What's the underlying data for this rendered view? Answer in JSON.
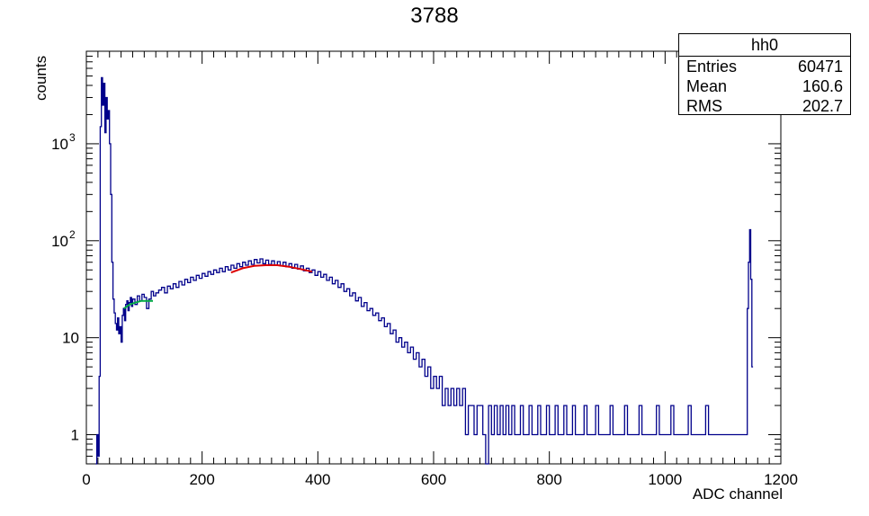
{
  "chart_data": {
    "type": "histogram",
    "title": "3788",
    "xlabel": "ADC channel",
    "ylabel": "counts",
    "xlim": [
      0,
      1200
    ],
    "ylim": [
      0.5,
      9000
    ],
    "yscale": "log",
    "x_ticks": [
      "0",
      "200",
      "400",
      "600",
      "800",
      "1000",
      "1200"
    ],
    "y_ticks": [
      {
        "value": 1,
        "label": "1"
      },
      {
        "value": 10,
        "label": "10"
      },
      {
        "value": 100,
        "label": "10",
        "sup": "2"
      },
      {
        "value": 1000,
        "label": "10",
        "sup": "3"
      }
    ],
    "stats": {
      "name": "hh0",
      "rows": [
        {
          "label": "Entries",
          "value": "60471"
        },
        {
          "label": "Mean",
          "value": "160.6"
        },
        {
          "label": "RMS",
          "value": "202.7"
        }
      ]
    },
    "series": [
      {
        "color": "#00008b",
        "points": [
          [
            16,
            0.5
          ],
          [
            18,
            1
          ],
          [
            20,
            0.6
          ],
          [
            22,
            4
          ],
          [
            24,
            1500
          ],
          [
            26,
            4800
          ],
          [
            28,
            2500
          ],
          [
            30,
            4200
          ],
          [
            32,
            1300
          ],
          [
            34,
            3000
          ],
          [
            36,
            1800
          ],
          [
            38,
            2200
          ],
          [
            40,
            1000
          ],
          [
            42,
            300
          ],
          [
            44,
            60
          ],
          [
            46,
            25
          ],
          [
            48,
            18
          ],
          [
            50,
            14
          ],
          [
            52,
            12
          ],
          [
            54,
            16
          ],
          [
            56,
            11
          ],
          [
            58,
            13
          ],
          [
            60,
            9
          ],
          [
            62,
            17
          ],
          [
            64,
            20
          ],
          [
            66,
            15
          ],
          [
            68,
            22
          ],
          [
            70,
            24
          ],
          [
            72,
            19
          ],
          [
            74,
            23
          ],
          [
            76,
            26
          ],
          [
            78,
            21
          ],
          [
            80,
            25
          ],
          [
            84,
            22
          ],
          [
            88,
            27
          ],
          [
            92,
            24
          ],
          [
            96,
            28
          ],
          [
            100,
            26
          ],
          [
            104,
            20
          ],
          [
            108,
            25
          ],
          [
            112,
            30
          ],
          [
            116,
            27
          ],
          [
            120,
            29
          ],
          [
            125,
            31
          ],
          [
            130,
            33
          ],
          [
            135,
            29
          ],
          [
            140,
            34
          ],
          [
            145,
            32
          ],
          [
            150,
            36
          ],
          [
            155,
            33
          ],
          [
            160,
            38
          ],
          [
            165,
            35
          ],
          [
            170,
            40
          ],
          [
            175,
            37
          ],
          [
            180,
            42
          ],
          [
            185,
            39
          ],
          [
            190,
            44
          ],
          [
            195,
            41
          ],
          [
            200,
            46
          ],
          [
            205,
            43
          ],
          [
            210,
            48
          ],
          [
            215,
            45
          ],
          [
            220,
            50
          ],
          [
            225,
            47
          ],
          [
            230,
            52
          ],
          [
            235,
            48
          ],
          [
            240,
            54
          ],
          [
            245,
            50
          ],
          [
            250,
            56
          ],
          [
            255,
            52
          ],
          [
            260,
            58
          ],
          [
            265,
            54
          ],
          [
            270,
            60
          ],
          [
            275,
            56
          ],
          [
            280,
            62
          ],
          [
            285,
            57
          ],
          [
            290,
            64
          ],
          [
            295,
            59
          ],
          [
            300,
            65
          ],
          [
            305,
            58
          ],
          [
            310,
            63
          ],
          [
            315,
            57
          ],
          [
            320,
            62
          ],
          [
            325,
            56
          ],
          [
            330,
            61
          ],
          [
            335,
            55
          ],
          [
            340,
            60
          ],
          [
            345,
            54
          ],
          [
            350,
            58
          ],
          [
            355,
            52
          ],
          [
            360,
            57
          ],
          [
            365,
            51
          ],
          [
            370,
            55
          ],
          [
            375,
            49
          ],
          [
            380,
            52
          ],
          [
            385,
            47
          ],
          [
            390,
            50
          ],
          [
            395,
            44
          ],
          [
            400,
            48
          ],
          [
            405,
            42
          ],
          [
            410,
            45
          ],
          [
            415,
            39
          ],
          [
            420,
            42
          ],
          [
            425,
            36
          ],
          [
            430,
            39
          ],
          [
            435,
            33
          ],
          [
            440,
            36
          ],
          [
            445,
            30
          ],
          [
            450,
            32
          ],
          [
            455,
            27
          ],
          [
            460,
            29
          ],
          [
            465,
            24
          ],
          [
            470,
            26
          ],
          [
            475,
            21
          ],
          [
            480,
            23
          ],
          [
            485,
            19
          ],
          [
            490,
            20
          ],
          [
            495,
            17
          ],
          [
            500,
            18
          ],
          [
            505,
            15
          ],
          [
            510,
            16
          ],
          [
            515,
            13
          ],
          [
            520,
            14
          ],
          [
            525,
            11
          ],
          [
            530,
            12
          ],
          [
            535,
            9
          ],
          [
            540,
            10
          ],
          [
            545,
            8
          ],
          [
            550,
            9
          ],
          [
            555,
            7
          ],
          [
            560,
            8
          ],
          [
            565,
            6
          ],
          [
            570,
            7
          ],
          [
            575,
            5
          ],
          [
            580,
            6
          ],
          [
            585,
            4
          ],
          [
            590,
            5
          ],
          [
            595,
            3
          ],
          [
            600,
            4
          ],
          [
            605,
            3
          ],
          [
            610,
            4
          ],
          [
            615,
            2
          ],
          [
            620,
            3
          ],
          [
            625,
            2
          ],
          [
            630,
            3
          ],
          [
            635,
            2
          ],
          [
            640,
            3
          ],
          [
            645,
            2
          ],
          [
            650,
            3
          ],
          [
            655,
            1
          ],
          [
            660,
            2
          ],
          [
            665,
            2
          ],
          [
            670,
            1
          ],
          [
            675,
            2
          ],
          [
            680,
            2
          ],
          [
            685,
            1
          ],
          [
            690,
            0.5
          ],
          [
            695,
            2
          ],
          [
            700,
            1
          ],
          [
            705,
            2
          ],
          [
            710,
            1
          ],
          [
            715,
            2
          ],
          [
            720,
            1
          ],
          [
            725,
            2
          ],
          [
            730,
            1
          ],
          [
            735,
            2
          ],
          [
            740,
            1
          ],
          [
            745,
            1
          ],
          [
            750,
            2
          ],
          [
            755,
            1
          ],
          [
            760,
            1
          ],
          [
            765,
            2
          ],
          [
            770,
            1
          ],
          [
            775,
            1
          ],
          [
            780,
            2
          ],
          [
            785,
            1
          ],
          [
            790,
            1
          ],
          [
            795,
            2
          ],
          [
            800,
            1
          ],
          [
            805,
            1
          ],
          [
            810,
            2
          ],
          [
            815,
            1
          ],
          [
            820,
            1
          ],
          [
            825,
            2
          ],
          [
            830,
            1
          ],
          [
            835,
            1
          ],
          [
            840,
            2
          ],
          [
            845,
            1
          ],
          [
            850,
            1
          ],
          [
            855,
            1
          ],
          [
            860,
            2
          ],
          [
            865,
            1
          ],
          [
            870,
            1
          ],
          [
            875,
            1
          ],
          [
            880,
            2
          ],
          [
            885,
            1
          ],
          [
            890,
            1
          ],
          [
            895,
            1
          ],
          [
            900,
            1
          ],
          [
            905,
            2
          ],
          [
            910,
            1
          ],
          [
            915,
            1
          ],
          [
            920,
            1
          ],
          [
            925,
            1
          ],
          [
            930,
            2
          ],
          [
            935,
            1
          ],
          [
            940,
            1
          ],
          [
            945,
            1
          ],
          [
            950,
            1
          ],
          [
            955,
            2
          ],
          [
            960,
            1
          ],
          [
            965,
            1
          ],
          [
            970,
            1
          ],
          [
            975,
            1
          ],
          [
            980,
            1
          ],
          [
            985,
            2
          ],
          [
            990,
            1
          ],
          [
            995,
            1
          ],
          [
            1000,
            1
          ],
          [
            1005,
            1
          ],
          [
            1010,
            2
          ],
          [
            1015,
            1
          ],
          [
            1020,
            1
          ],
          [
            1025,
            1
          ],
          [
            1030,
            1
          ],
          [
            1035,
            1
          ],
          [
            1040,
            2
          ],
          [
            1045,
            1
          ],
          [
            1050,
            1
          ],
          [
            1055,
            1
          ],
          [
            1060,
            1
          ],
          [
            1065,
            1
          ],
          [
            1070,
            2
          ],
          [
            1075,
            1
          ],
          [
            1080,
            1
          ],
          [
            1085,
            1
          ],
          [
            1090,
            1
          ],
          [
            1095,
            1
          ],
          [
            1100,
            1
          ],
          [
            1105,
            1
          ],
          [
            1110,
            1
          ],
          [
            1115,
            1
          ],
          [
            1120,
            1
          ],
          [
            1125,
            1
          ],
          [
            1130,
            1
          ],
          [
            1135,
            1
          ],
          [
            1140,
            1
          ],
          [
            1142,
            20
          ],
          [
            1144,
            60
          ],
          [
            1146,
            130
          ],
          [
            1148,
            40
          ],
          [
            1150,
            5
          ]
        ]
      },
      {
        "color": "#dd0000",
        "kind": "fit",
        "points": [
          [
            250,
            47
          ],
          [
            270,
            52
          ],
          [
            290,
            55
          ],
          [
            310,
            56
          ],
          [
            330,
            56
          ],
          [
            350,
            54
          ],
          [
            370,
            51
          ],
          [
            390,
            48
          ]
        ]
      },
      {
        "color": "#00aa44",
        "kind": "fit",
        "points": [
          [
            65,
            20
          ],
          [
            75,
            22
          ],
          [
            85,
            23
          ],
          [
            95,
            24
          ],
          [
            105,
            24
          ],
          [
            115,
            24
          ]
        ]
      }
    ]
  }
}
